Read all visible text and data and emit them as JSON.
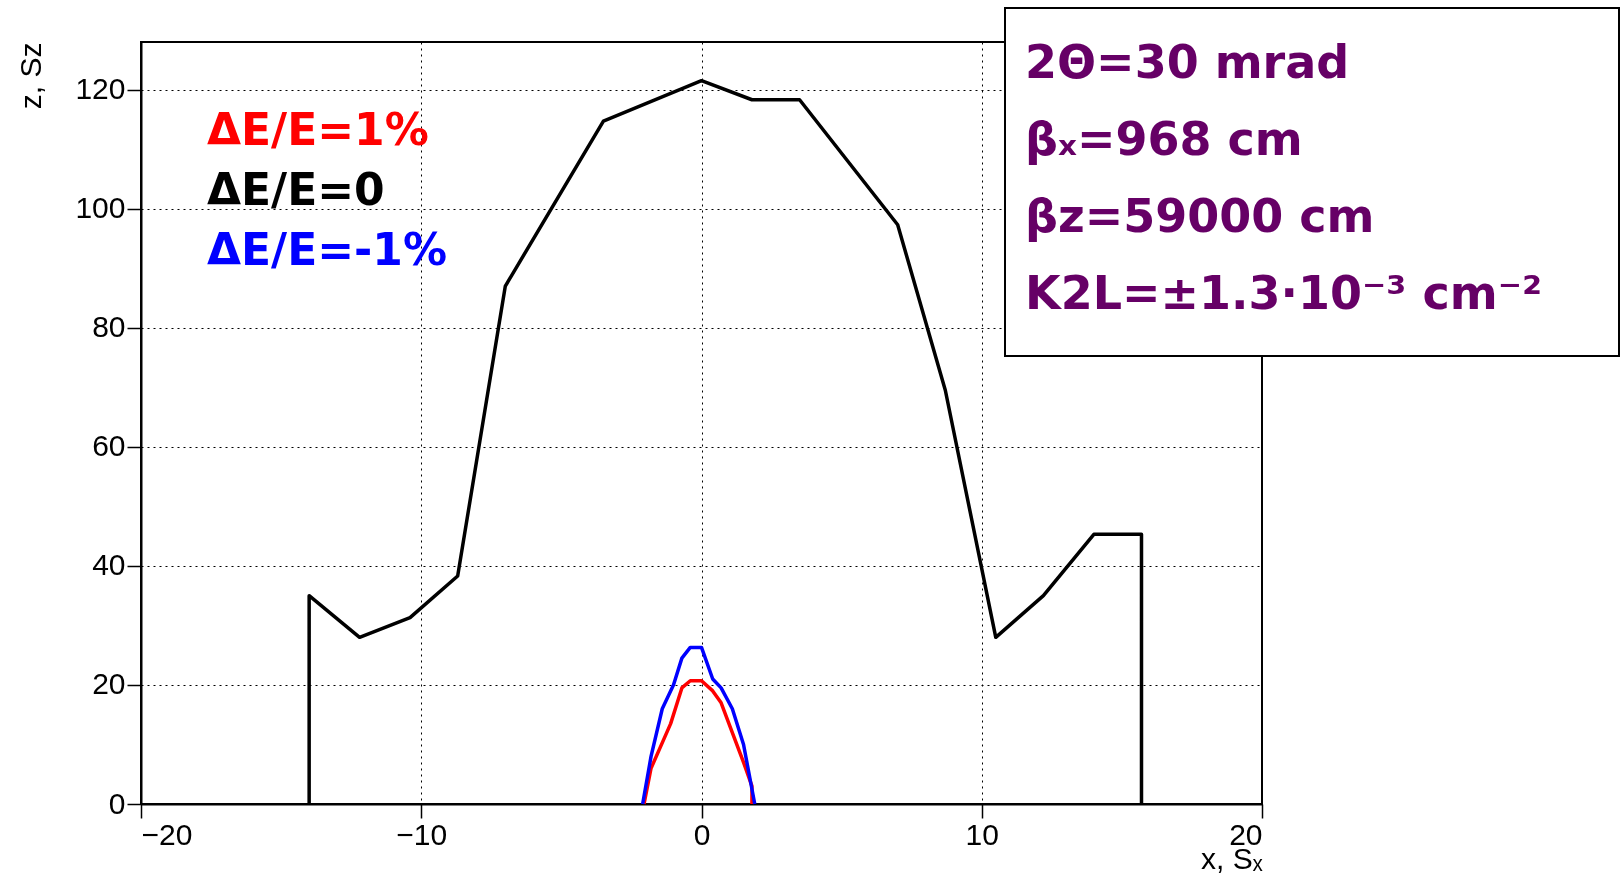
{
  "chart_data": {
    "type": "line",
    "xlabel": "x, Sₓ",
    "ylabel": "z, Sz",
    "xlim": [
      -20,
      20
    ],
    "xticks": [
      -20,
      -10,
      0,
      10,
      20
    ],
    "ylim": [
      0,
      128
    ],
    "yticks": [
      0,
      20,
      40,
      60,
      80,
      100,
      120
    ],
    "grid": true,
    "legend": "top left",
    "line_style": "solid",
    "marker": "none",
    "series": [
      {
        "name": "ΔE/E=1%",
        "color": "#ff0000",
        "x": [
          -2.05,
          -1.8,
          -1.1,
          -0.7,
          -0.4,
          0,
          0.4,
          0.7,
          1.1,
          1.5,
          1.8,
          1.8
        ],
        "values": [
          0,
          6,
          13.5,
          19.5,
          20.7,
          20.7,
          19,
          17,
          12,
          7,
          3,
          0
        ]
      },
      {
        "name": "ΔE/E=0",
        "color": "#000000",
        "x": [
          -14,
          -14,
          -12.2,
          -10.4,
          -8.7,
          -7,
          -3.5,
          0,
          1.8,
          3.5,
          7,
          8.7,
          10.5,
          12.2,
          14,
          15.7,
          15.7
        ],
        "values": [
          0,
          35,
          28,
          31.3,
          38.3,
          87,
          114.7,
          121.5,
          118.3,
          118.3,
          97.3,
          69.5,
          28,
          35,
          45.3,
          45.3,
          0
        ]
      },
      {
        "name": "ΔE/E=-1%",
        "color": "#0000ff",
        "x": [
          -2.1,
          -1.8,
          -1.4,
          -1,
          -0.7,
          -0.4,
          0,
          0.4,
          0.7,
          1.1,
          1.5,
          1.9
        ],
        "values": [
          0,
          8,
          16,
          20,
          24.5,
          26.3,
          26.3,
          21,
          19.5,
          16,
          10,
          0
        ]
      }
    ],
    "annotations": [
      "2Θ=30 mrad",
      "βₓ=968 cm",
      "βz=59000 cm",
      "K2L=±1.3·10⁻³ cm⁻²"
    ]
  }
}
